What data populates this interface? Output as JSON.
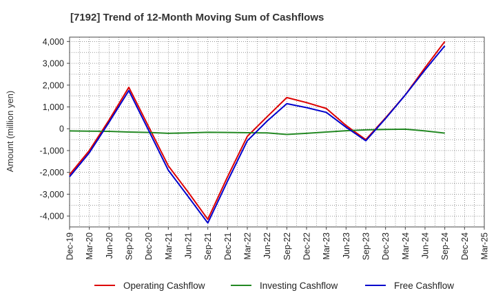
{
  "colors": {
    "operating": "#dd0000",
    "investing": "#228822",
    "free": "#0000cc",
    "grid": "#555555",
    "axis": "#444444",
    "background": "#ffffff"
  },
  "chart_data": {
    "type": "line",
    "title": "[7192]  Trend of 12-Month Moving Sum of Cashflows",
    "xlabel": "",
    "ylabel": "Amount (million yen)",
    "ylim": [
      -4500,
      4200
    ],
    "yticks": [
      4000,
      3000,
      2000,
      1000,
      0,
      -1000,
      -2000,
      -3000,
      -4000
    ],
    "ytick_labels": [
      "4,000",
      "3,000",
      "2,000",
      "1,000",
      "0",
      "-1,000",
      "-2,000",
      "-3,000",
      "-4,000"
    ],
    "categories": [
      "Dec-19",
      "Mar-20",
      "Jun-20",
      "Sep-20",
      "Dec-20",
      "Mar-21",
      "Jun-21",
      "Sep-21",
      "Dec-21",
      "Mar-22",
      "Jun-22",
      "Sep-22",
      "Dec-22",
      "Mar-23",
      "Jun-23",
      "Sep-23",
      "Dec-23",
      "Mar-24",
      "Jun-24",
      "Sep-24",
      "Dec-24",
      "Mar-25"
    ],
    "grid": true,
    "legend_position": "bottom",
    "series": [
      {
        "name": "Operating Cashflow",
        "color_key": "operating",
        "values": [
          -2100,
          -1000,
          400,
          1900,
          100,
          -1700,
          -2900,
          -4150,
          -2200,
          -350,
          550,
          1430,
          1200,
          930,
          150,
          -500,
          500,
          1550,
          2800,
          4000,
          null,
          null
        ]
      },
      {
        "name": "Investing Cashflow",
        "color_key": "investing",
        "values": [
          -100,
          -110,
          -120,
          -150,
          -170,
          -210,
          -190,
          -160,
          -170,
          -180,
          -190,
          -260,
          -210,
          -150,
          -90,
          -50,
          -30,
          -20,
          -100,
          -200,
          null,
          null
        ]
      },
      {
        "name": "Free Cashflow",
        "color_key": "free",
        "values": [
          -2200,
          -1100,
          300,
          1750,
          -70,
          -1900,
          -3100,
          -4320,
          -2400,
          -550,
          350,
          1150,
          970,
          750,
          70,
          -550,
          470,
          1550,
          2700,
          3800,
          null,
          null
        ]
      }
    ]
  }
}
